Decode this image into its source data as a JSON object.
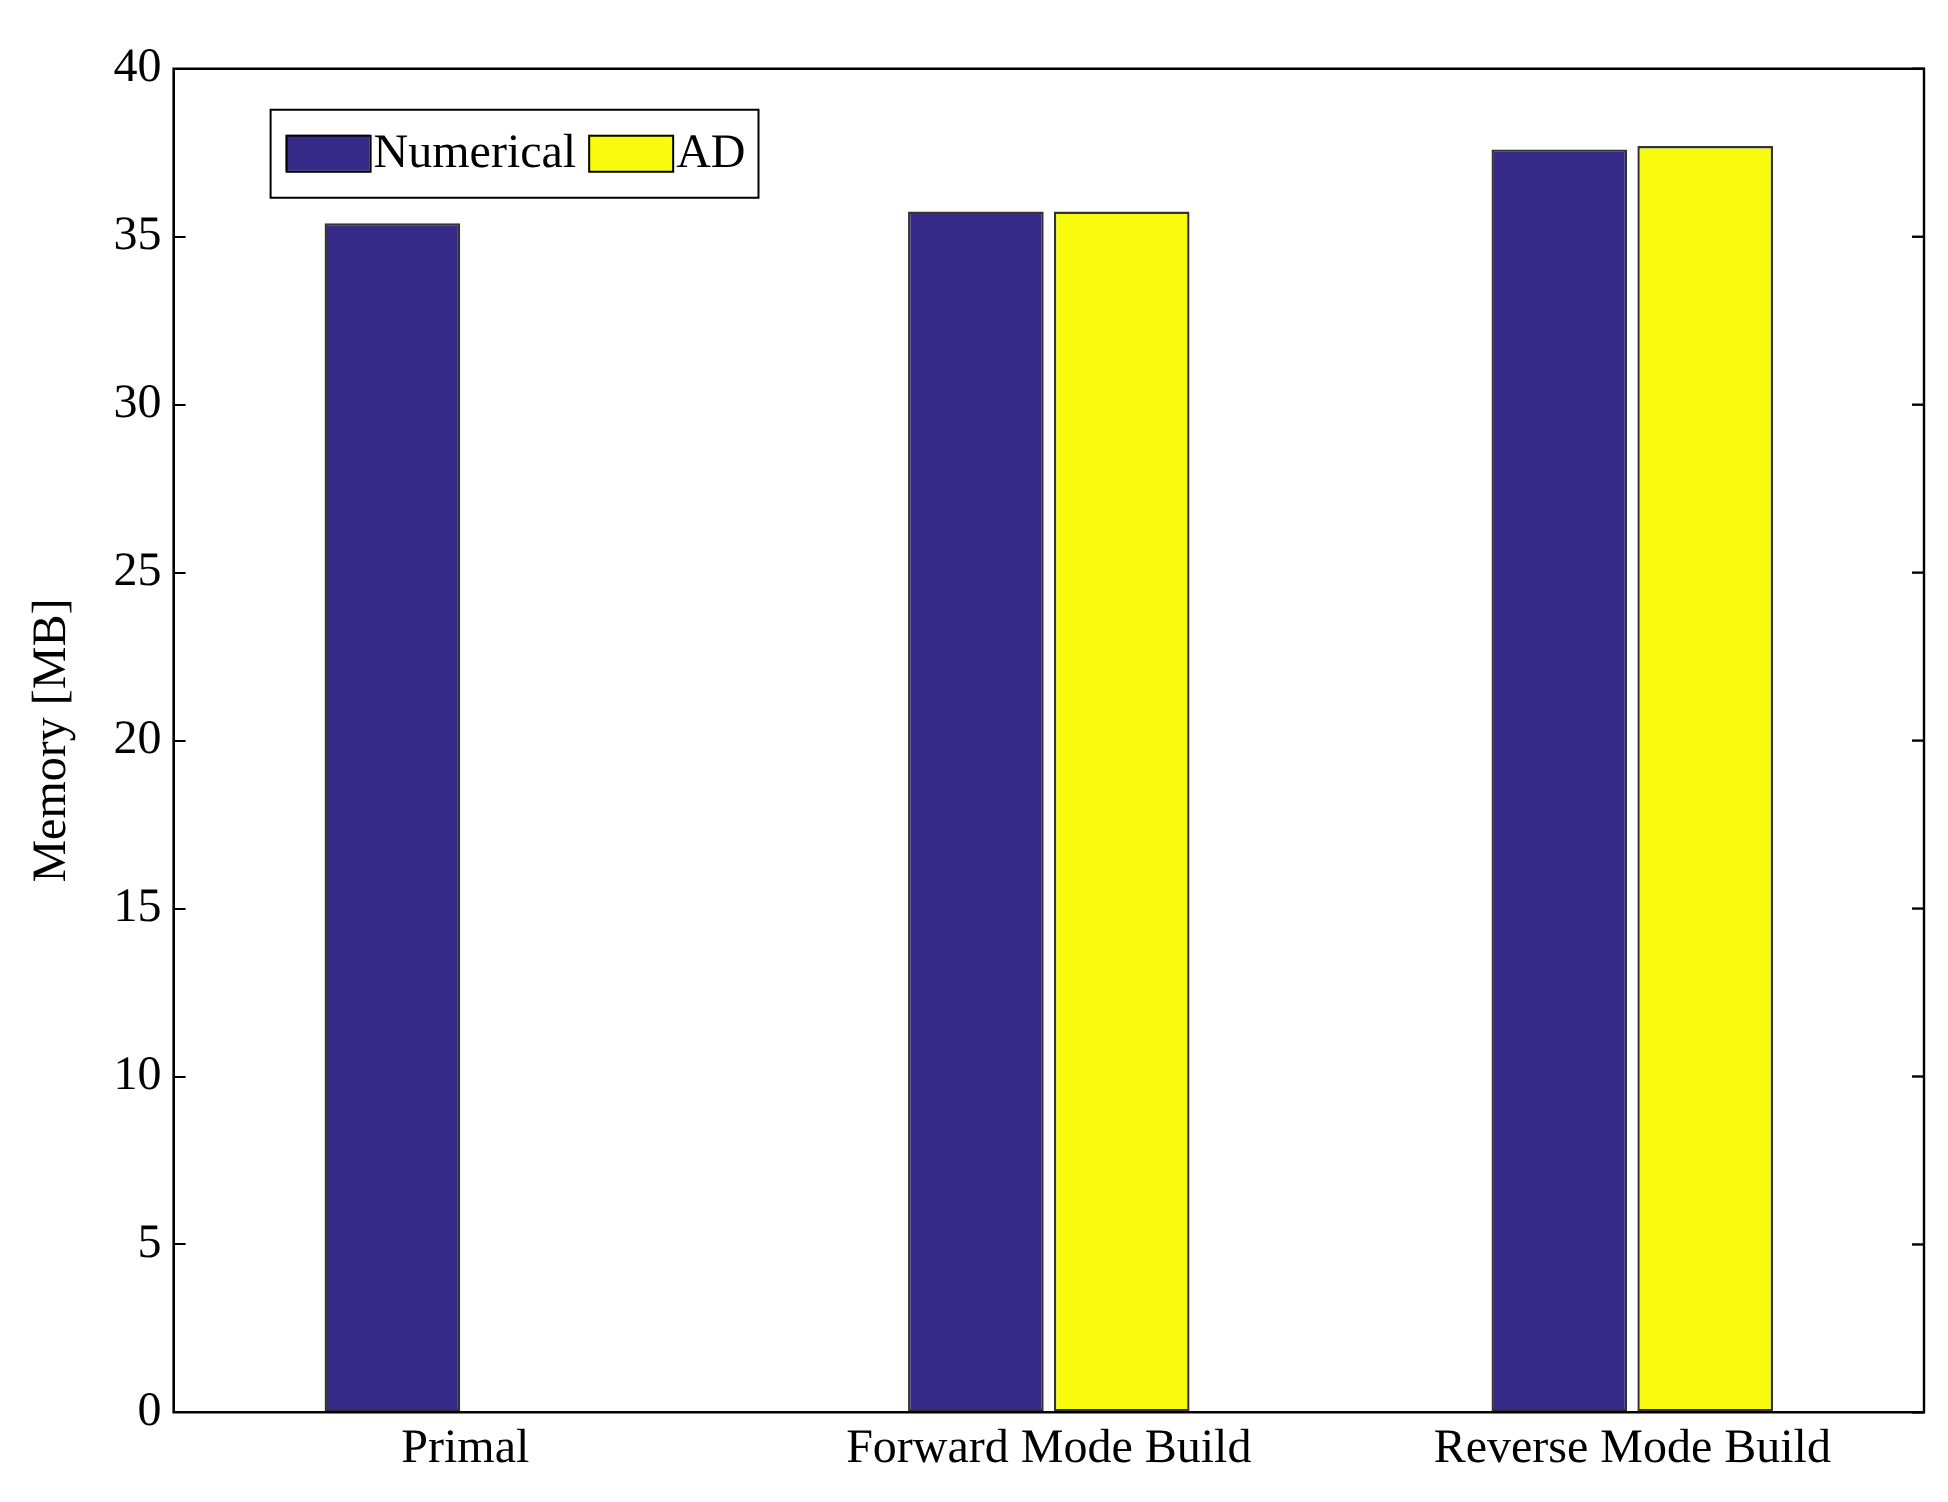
{
  "chart_data": {
    "type": "bar",
    "ylabel": "Memory [MB]",
    "categories": [
      "Primal",
      "Forward Mode Build",
      "Reverse Mode Build"
    ],
    "series": [
      {
        "name": "Numerical",
        "color": "#352a87",
        "values": [
          35.4,
          35.75,
          37.6
        ]
      },
      {
        "name": "AD",
        "color": "#f9fb0e",
        "values": [
          0,
          35.75,
          37.7
        ]
      }
    ],
    "ylim": [
      0,
      40
    ],
    "yticks": [
      0,
      5,
      10,
      15,
      20,
      25,
      30,
      35,
      40
    ],
    "grid": false,
    "legend": "top left"
  }
}
